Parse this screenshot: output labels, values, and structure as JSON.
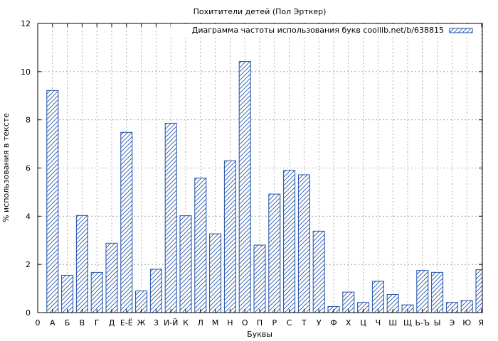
{
  "chart_data": {
    "type": "bar",
    "title": "Похитители детей (Пол Эрткер)",
    "xlabel": "Буквы",
    "ylabel": "% использования в тексте",
    "legend": {
      "label": "Диаграмма частоты использования букв coollib.net/b/638815",
      "placement": "top-right"
    },
    "x_ticks": [
      "0",
      "А",
      "Б",
      "В",
      "Г",
      "Д",
      "Е-Ё",
      "Ж",
      "З",
      "И-Й",
      "К",
      "Л",
      "М",
      "Н",
      "О",
      "П",
      "Р",
      "С",
      "Т",
      "У",
      "Ф",
      "Х",
      "Ц",
      "Ч",
      "Ш",
      "Щ",
      "Ь-Ъ",
      "Ы",
      "Э",
      "Ю",
      "Я"
    ],
    "categories": [
      "А",
      "Б",
      "В",
      "Г",
      "Д",
      "Е-Ё",
      "Ж",
      "З",
      "И-Й",
      "К",
      "Л",
      "М",
      "Н",
      "О",
      "П",
      "Р",
      "С",
      "Т",
      "У",
      "Ф",
      "Х",
      "Ц",
      "Ч",
      "Ш",
      "Щ",
      "Ь-Ъ",
      "Ы",
      "Э",
      "Ю",
      "Я"
    ],
    "values": [
      9.22,
      1.55,
      4.03,
      1.67,
      2.88,
      7.48,
      0.9,
      1.8,
      7.86,
      4.02,
      5.58,
      3.27,
      6.3,
      10.42,
      2.8,
      4.92,
      5.9,
      5.72,
      3.38,
      0.25,
      0.85,
      0.42,
      1.3,
      0.75,
      0.32,
      1.75,
      1.67,
      0.42,
      0.5,
      1.78
    ],
    "ylim": [
      0,
      12
    ],
    "yticks": [
      0,
      2,
      4,
      6,
      8,
      10,
      12
    ],
    "grid": true,
    "colors": {
      "bar_stroke": "#1f4fa8",
      "hatch": "#1f4fa8",
      "grid": "#999999"
    }
  }
}
